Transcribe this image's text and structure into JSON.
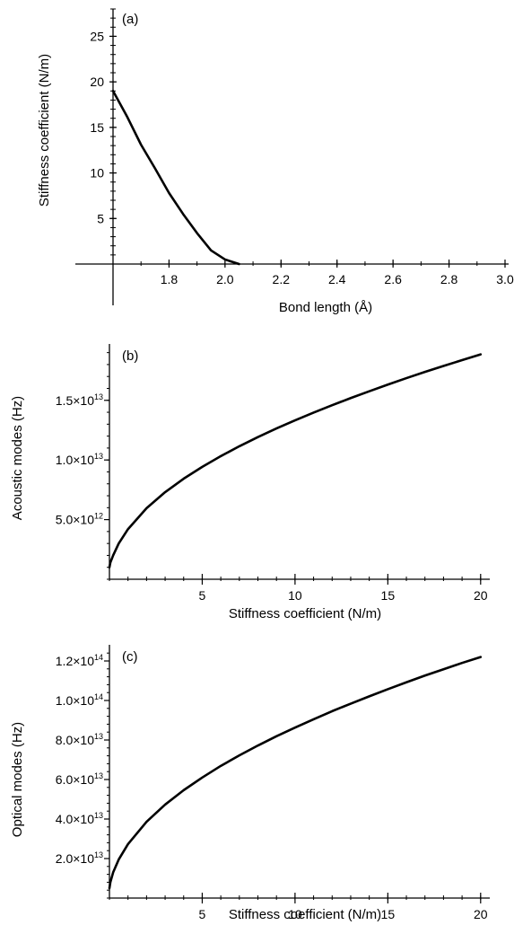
{
  "chart_data": [
    {
      "type": "line",
      "panel_label": "(a)",
      "xlabel": "Bond length (Å)",
      "ylabel": "Stiffness coefficient (N/m)",
      "xlim": [
        1.6,
        3.0
      ],
      "ylim": [
        0,
        28
      ],
      "xticks": [
        {
          "value": 1.8,
          "label": "1.8"
        },
        {
          "value": 2.0,
          "label": "2.0"
        },
        {
          "value": 2.2,
          "label": "2.2"
        },
        {
          "value": 2.4,
          "label": "2.4"
        },
        {
          "value": 2.6,
          "label": "2.6"
        },
        {
          "value": 2.8,
          "label": "2.8"
        },
        {
          "value": 3.0,
          "label": "3.0"
        }
      ],
      "yticks": [
        {
          "value": 5,
          "label": "5"
        },
        {
          "value": 10,
          "label": "10"
        },
        {
          "value": 15,
          "label": "15"
        },
        {
          "value": 20,
          "label": "20"
        },
        {
          "value": 25,
          "label": "25"
        }
      ],
      "series": [
        {
          "x": [
            1.6,
            1.65,
            1.7,
            1.75,
            1.8,
            1.85,
            1.9,
            1.95,
            2.0,
            2.05
          ],
          "y": [
            19.0,
            16.2,
            13.1,
            10.5,
            7.8,
            5.5,
            3.4,
            1.5,
            0.5,
            0
          ]
        }
      ],
      "color": "#000000"
    },
    {
      "type": "line",
      "panel_label": "(b)",
      "xlabel": "Stiffness coefficient (N/m)",
      "ylabel": "Acoustic modes (Hz)",
      "xlim": [
        0,
        20.3
      ],
      "ylim": [
        0,
        19500000000000.0
      ],
      "xticks": [
        {
          "value": 5,
          "label": "5"
        },
        {
          "value": 10,
          "label": "10"
        },
        {
          "value": 15,
          "label": "15"
        },
        {
          "value": 20,
          "label": "20"
        }
      ],
      "yticks": [
        {
          "value": 5000000000000.0,
          "mant": "5.0×10",
          "exp": "12"
        },
        {
          "value": 10000000000000.0,
          "mant": "1.0×10",
          "exp": "13"
        },
        {
          "value": 15000000000000.0,
          "mant": "1.5×10",
          "exp": "13"
        }
      ],
      "series": [
        {
          "x": [
            0,
            0.05,
            0.2,
            0.5,
            1,
            2,
            3,
            4,
            5,
            6,
            7,
            8,
            9,
            10,
            11,
            12,
            13,
            14,
            15,
            16,
            17,
            18,
            19,
            20
          ],
          "y": [
            1000000000000.0,
            1400000000000.0,
            2000000000000.0,
            3000000000000.0,
            4200000000000.0,
            5960000000000.0,
            7300000000000.0,
            8430000000000.0,
            9420000000000.0,
            10320000000000.0,
            11150000000000.0,
            11920000000000.0,
            12640000000000.0,
            13320000000000.0,
            13970000000000.0,
            14590000000000.0,
            15190000000000.0,
            15760000000000.0,
            16320000000000.0,
            16860000000000.0,
            17380000000000.0,
            17880000000000.0,
            18370000000000.0,
            18850000000000.0
          ]
        }
      ],
      "color": "#000000"
    },
    {
      "type": "line",
      "panel_label": "(c)",
      "xlabel": "Stiffness coefficient (N/m)",
      "ylabel": "Optical modes (Hz)",
      "xlim": [
        0,
        20.3
      ],
      "ylim": [
        0,
        125000000000000.0
      ],
      "xticks": [
        {
          "value": 5,
          "label": "5"
        },
        {
          "value": 10,
          "label": "10"
        },
        {
          "value": 15,
          "label": "15"
        },
        {
          "value": 20,
          "label": "20"
        }
      ],
      "yticks": [
        {
          "value": 20000000000000.0,
          "mant": "2.0×10",
          "exp": "13"
        },
        {
          "value": 40000000000000.0,
          "mant": "4.0×10",
          "exp": "13"
        },
        {
          "value": 60000000000000.0,
          "mant": "6.0×10",
          "exp": "13"
        },
        {
          "value": 80000000000000.0,
          "mant": "8.0×10",
          "exp": "13"
        },
        {
          "value": 100000000000000.0,
          "mant": "1.0×10",
          "exp": "14"
        },
        {
          "value": 120000000000000.0,
          "mant": "1.2×10",
          "exp": "14"
        }
      ],
      "series": [
        {
          "x": [
            0,
            0.05,
            0.2,
            0.5,
            1,
            2,
            3,
            4,
            5,
            6,
            7,
            8,
            9,
            10,
            11,
            12,
            13,
            14,
            15,
            16,
            17,
            18,
            19,
            20
          ],
          "y": [
            5000000000000.0,
            8000000000000.0,
            13000000000000.0,
            19500000000000.0,
            27300000000000.0,
            38600000000000.0,
            47300000000000.0,
            54600000000000.0,
            61000000000000.0,
            66900000000000.0,
            72200000000000.0,
            77200000000000.0,
            81900000000000.0,
            86300000000000.0,
            90500000000000.0,
            94600000000000.0,
            98400000000000.0,
            102100000000000.0,
            105700000000000.0,
            109200000000000.0,
            112600000000000.0,
            115800000000000.0,
            119000000000000.0,
            122000000000000.0
          ]
        }
      ],
      "color": "#000000"
    }
  ]
}
